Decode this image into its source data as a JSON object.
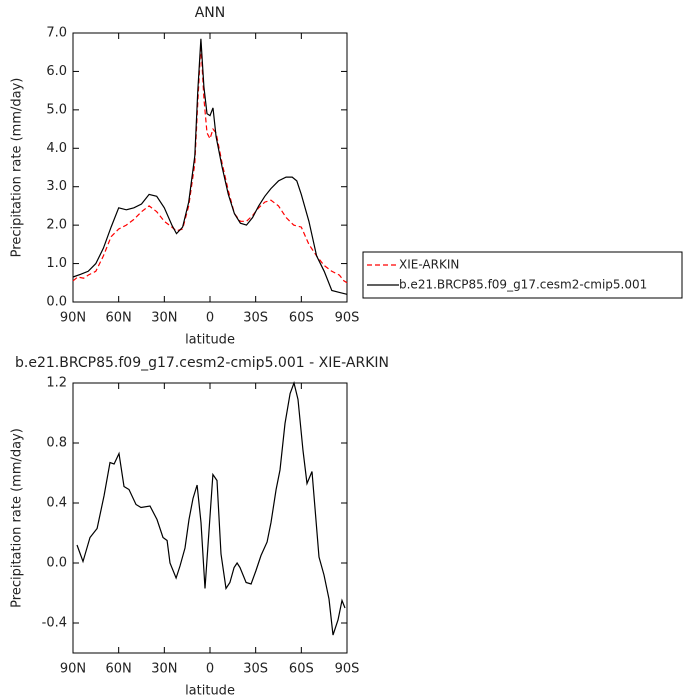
{
  "chart_data": [
    {
      "type": "line",
      "title": "ANN",
      "xlabel": "latitude",
      "ylabel": "Precipitation rate (mm/day)",
      "xlim": [
        90,
        -90
      ],
      "xticks": [
        {
          "value": 90,
          "label": "90N"
        },
        {
          "value": 60,
          "label": "60N"
        },
        {
          "value": 30,
          "label": "30N"
        },
        0,
        {
          "value": -30,
          "label": "30S"
        },
        {
          "value": -60,
          "label": "60S"
        },
        {
          "value": -90,
          "label": "90S"
        }
      ],
      "ylim": [
        0,
        7
      ],
      "yticks": [
        {
          "value": 0,
          "label": "0.0"
        },
        {
          "value": 1,
          "label": "1.0"
        },
        {
          "value": 2,
          "label": "2.0"
        },
        {
          "value": 3,
          "label": "3.0"
        },
        {
          "value": 4,
          "label": "4.0"
        },
        {
          "value": 5,
          "label": "5.0"
        },
        {
          "value": 6,
          "label": "6.0"
        },
        {
          "value": 7,
          "label": "7.0"
        }
      ],
      "legend": "outside-right",
      "series": [
        {
          "name": "XIE-ARKIN",
          "color": "#ff0000",
          "linestyle": "dashed",
          "x": [
            90,
            87,
            83,
            80,
            75,
            70,
            65,
            60,
            55,
            50,
            45,
            40,
            35,
            30,
            25,
            22,
            18,
            14,
            10,
            8,
            6,
            4,
            2,
            0,
            -2,
            -4,
            -8,
            -12,
            -16,
            -20,
            -24,
            -28,
            -32,
            -36,
            -40,
            -45,
            -50,
            -55,
            -60,
            -65,
            -70,
            -75,
            -80,
            -85,
            -88,
            -90
          ],
          "values": [
            0.55,
            0.65,
            0.62,
            0.7,
            0.8,
            1.2,
            1.7,
            1.9,
            2.0,
            2.15,
            2.35,
            2.5,
            2.35,
            2.1,
            1.95,
            1.85,
            1.9,
            2.5,
            3.6,
            5.2,
            6.7,
            5.3,
            4.4,
            4.25,
            4.5,
            4.4,
            3.6,
            2.9,
            2.3,
            2.1,
            2.1,
            2.25,
            2.45,
            2.6,
            2.65,
            2.5,
            2.2,
            2.0,
            1.95,
            1.5,
            1.2,
            0.95,
            0.8,
            0.7,
            0.55,
            0.5
          ]
        },
        {
          "name": "b.e21.BRCP85.f09_g17.cesm2-cmip5.001",
          "color": "#000000",
          "linestyle": "solid",
          "x": [
            90,
            85,
            80,
            75,
            70,
            65,
            60,
            55,
            50,
            45,
            40,
            35,
            30,
            25,
            22,
            18,
            14,
            10,
            8,
            6,
            4,
            2,
            0,
            -2,
            -4,
            -8,
            -12,
            -16,
            -20,
            -24,
            -28,
            -32,
            -36,
            -40,
            -45,
            -50,
            -54,
            -57,
            -60,
            -65,
            -70,
            -75,
            -80,
            -85,
            -90
          ],
          "values": [
            0.65,
            0.72,
            0.8,
            1.0,
            1.4,
            1.95,
            2.45,
            2.4,
            2.45,
            2.55,
            2.8,
            2.75,
            2.45,
            2.0,
            1.78,
            1.95,
            2.6,
            3.8,
            5.5,
            6.85,
            5.6,
            4.9,
            4.85,
            5.05,
            4.3,
            3.5,
            2.8,
            2.3,
            2.05,
            2.0,
            2.2,
            2.5,
            2.75,
            2.95,
            3.15,
            3.25,
            3.25,
            3.15,
            2.8,
            2.1,
            1.2,
            0.8,
            0.3,
            0.25,
            0.2
          ]
        }
      ]
    },
    {
      "type": "line",
      "title": "b.e21.BRCP85.f09_g17.cesm2-cmip5.001 - XIE-ARKIN",
      "xlabel": "latitude",
      "ylabel": "Precipitation rate (mm/day)",
      "xlim": [
        90,
        -90
      ],
      "xticks": [
        {
          "value": 90,
          "label": "90N"
        },
        {
          "value": 60,
          "label": "60N"
        },
        {
          "value": 30,
          "label": "30N"
        },
        0,
        {
          "value": -30,
          "label": "30S"
        },
        {
          "value": -60,
          "label": "60S"
        },
        {
          "value": -90,
          "label": "90S"
        }
      ],
      "ylim": [
        -0.6,
        1.2
      ],
      "yticks": [
        {
          "value": -0.4,
          "label": "-0.4"
        },
        {
          "value": 0,
          "label": "0.0"
        },
        0.4,
        0.8,
        1.2
      ],
      "series": [
        {
          "color": "#000000",
          "linestyle": "solid",
          "x": [
            87.4,
            83.4,
            78.8,
            74.2,
            69.6,
            65.7,
            63,
            59.8,
            56.5,
            53.2,
            48.6,
            45.3,
            39.4,
            34.8,
            30.9,
            28.2,
            26.3,
            22.3,
            19.7,
            16.4,
            13.8,
            11.2,
            8.5,
            5.9,
            3.3,
            -1.9,
            -4.6,
            -7.2,
            -10.5,
            -13.1,
            -15.8,
            -17.8,
            -19.7,
            -23.7,
            -27,
            -30.2,
            -33.5,
            -37.5,
            -40.1,
            -43.4,
            -46,
            -49.3,
            -52.6,
            -55.2,
            -57.8,
            -61.1,
            -63.7,
            -67,
            -71.6,
            -74.9,
            -78.2,
            -80.8,
            -84.1,
            -86.7,
            -88.7
          ],
          "values": [
            0.12,
            0.01,
            0.17,
            0.23,
            0.45,
            0.67,
            0.66,
            0.73,
            0.51,
            0.49,
            0.39,
            0.37,
            0.38,
            0.29,
            0.17,
            0.15,
            0.0,
            -0.1,
            -0.02,
            0.1,
            0.29,
            0.43,
            0.52,
            0.27,
            -0.17,
            0.59,
            0.55,
            0.06,
            -0.17,
            -0.13,
            -0.03,
            0.0,
            -0.03,
            -0.13,
            -0.14,
            -0.05,
            0.05,
            0.14,
            0.27,
            0.49,
            0.62,
            0.93,
            1.13,
            1.2,
            1.09,
            0.75,
            0.53,
            0.61,
            0.04,
            -0.08,
            -0.24,
            -0.48,
            -0.38,
            -0.25,
            -0.3
          ]
        }
      ]
    }
  ]
}
